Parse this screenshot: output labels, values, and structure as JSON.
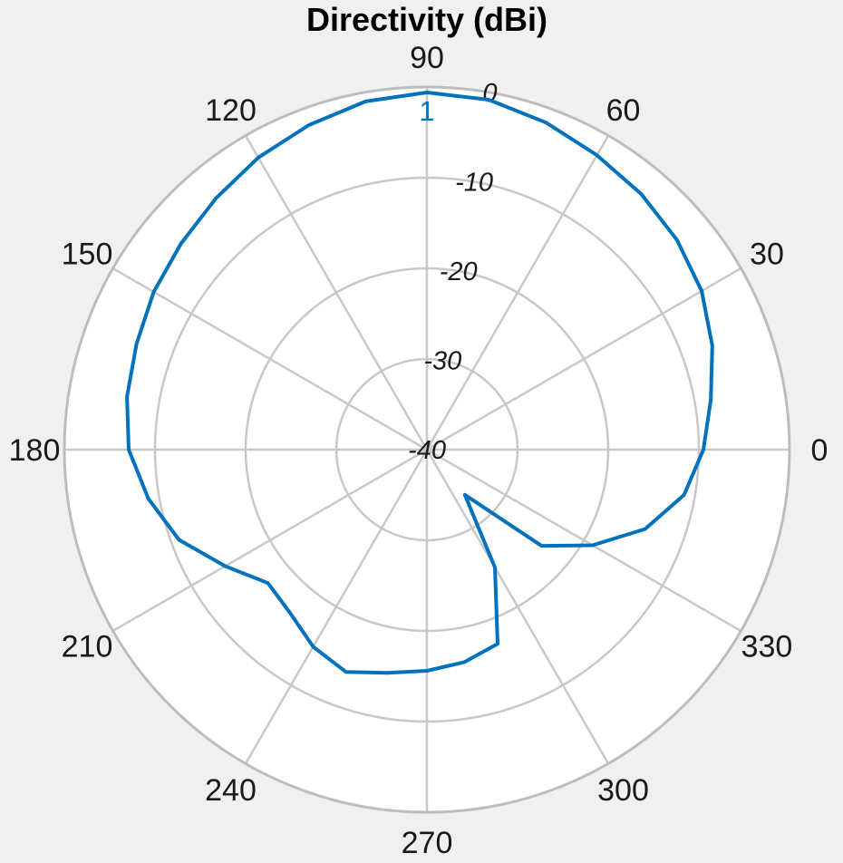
{
  "chart_data": {
    "type": "line",
    "subtype": "polar",
    "title": "Directivity (dBi)",
    "theta_ticks": [
      "0",
      "30",
      "60",
      "90",
      "120",
      "150",
      "180",
      "210",
      "240",
      "270",
      "300",
      "330"
    ],
    "r_ticks": [
      "-40",
      "-30",
      "-20",
      "-10",
      "0"
    ],
    "r_range": [
      -40,
      0
    ],
    "grid": true,
    "series": [
      {
        "name": "1",
        "color": "#0072bd",
        "theta_deg": [
          0,
          10,
          20,
          30,
          40,
          50,
          60,
          70,
          80,
          90,
          100,
          110,
          120,
          130,
          140,
          150,
          160,
          170,
          180,
          190,
          200,
          210,
          220,
          230,
          240,
          250,
          260,
          270,
          280,
          290,
          300,
          310,
          320,
          330,
          340,
          350
        ],
        "r_dbi": [
          -9.5,
          -8.2,
          -6.5,
          -5.0,
          -4.0,
          -3.2,
          -2.5,
          -1.6,
          -0.8,
          -0.6,
          -1.0,
          -1.9,
          -2.8,
          -3.8,
          -4.6,
          -5.2,
          -5.9,
          -6.4,
          -7.1,
          -8.8,
          -10.9,
          -14.3,
          -17.1,
          -16.5,
          -14.9,
          -13.9,
          -15.0,
          -15.6,
          -16.2,
          -17.2,
          -25.0,
          -33.5,
          -23.5,
          -18.9,
          -14.4,
          -11.2
        ]
      }
    ]
  }
}
